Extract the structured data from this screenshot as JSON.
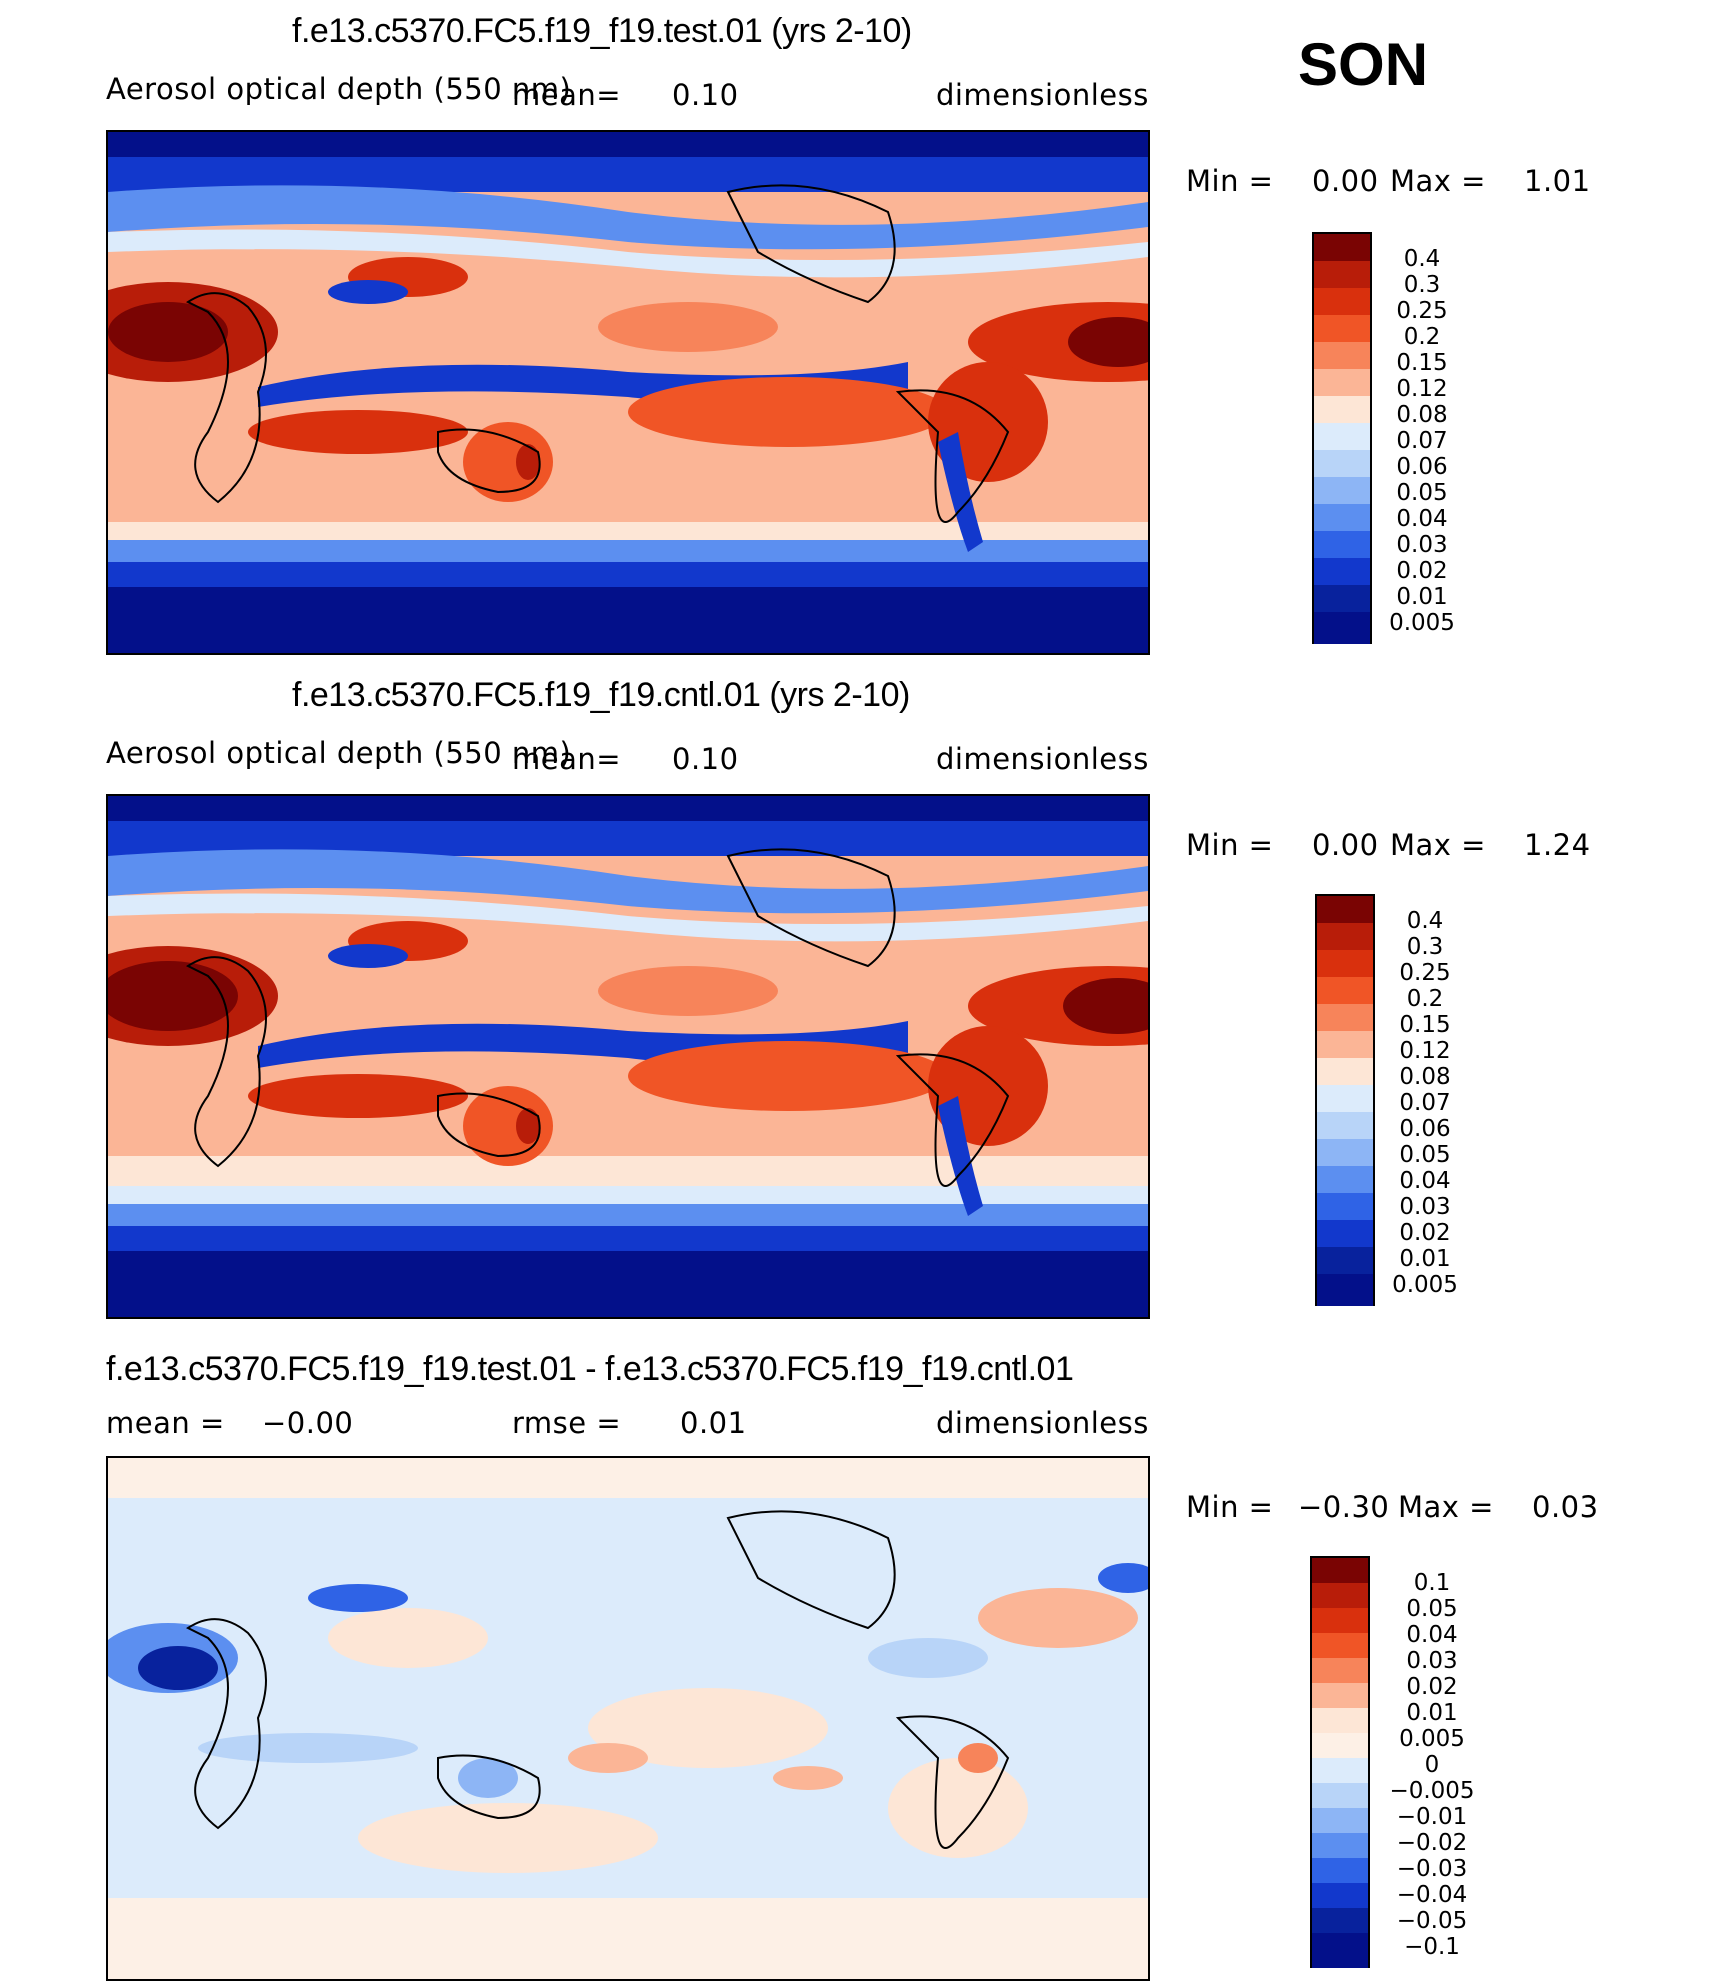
{
  "season": "SON",
  "colors": {
    "seq": [
      "#7a0403",
      "#b81d09",
      "#d9300d",
      "#f05526",
      "#f7845a",
      "#fbb596",
      "#fde6d6",
      "#dcebfb",
      "#b8d4f8",
      "#8db5f5",
      "#5c8ff0",
      "#2f63e6",
      "#1238cc",
      "#08229d",
      "#03108a"
    ],
    "diff": [
      "#7a0403",
      "#b81d09",
      "#d9300d",
      "#f05526",
      "#f7845a",
      "#fbb596",
      "#fde6d6",
      "#fdf0e6",
      "#dcebfb",
      "#b8d4f8",
      "#8db5f5",
      "#5c8ff0",
      "#2f63e6",
      "#1238cc",
      "#08229d",
      "#03108a"
    ]
  },
  "chart_data": [
    {
      "type": "heatmap",
      "title": "f.e13.c5370.FC5.f19_f19.test.01 (yrs 2-10)",
      "variable": "Aerosol optical depth (550 nm)",
      "mean_text": "mean=",
      "mean_value": "0.10",
      "units": "dimensionless",
      "min_text": "Min =",
      "min_value": "0.00",
      "max_text": "Max =",
      "max_value": "1.01",
      "colorbar_levels": [
        "0.4",
        "0.3",
        "0.25",
        "0.2",
        "0.15",
        "0.12",
        "0.08",
        "0.07",
        "0.06",
        "0.05",
        "0.04",
        "0.03",
        "0.02",
        "0.01",
        "0.005"
      ]
    },
    {
      "type": "heatmap",
      "title": "f.e13.c5370.FC5.f19_f19.cntl.01 (yrs 2-10)",
      "variable": "Aerosol optical depth (550 nm)",
      "mean_text": "mean=",
      "mean_value": "0.10",
      "units": "dimensionless",
      "min_text": "Min =",
      "min_value": "0.00",
      "max_text": "Max =",
      "max_value": "1.24",
      "colorbar_levels": [
        "0.4",
        "0.3",
        "0.25",
        "0.2",
        "0.15",
        "0.12",
        "0.08",
        "0.07",
        "0.06",
        "0.05",
        "0.04",
        "0.03",
        "0.02",
        "0.01",
        "0.005"
      ]
    },
    {
      "type": "heatmap",
      "title": "f.e13.c5370.FC5.f19_f19.test.01 - f.e13.c5370.FC5.f19_f19.cntl.01",
      "mean_text": "mean =",
      "mean_value": "−0.00",
      "rmse_text": "rmse =",
      "rmse_value": "0.01",
      "units": "dimensionless",
      "min_text": "Min =",
      "min_value": "−0.30",
      "max_text": "Max =",
      "max_value": "0.03",
      "colorbar_levels": [
        "0.1",
        "0.05",
        "0.04",
        "0.03",
        "0.02",
        "0.01",
        "0.005",
        "0",
        "−0.005",
        "−0.01",
        "−0.02",
        "−0.03",
        "−0.04",
        "−0.05",
        "−0.1"
      ]
    }
  ]
}
